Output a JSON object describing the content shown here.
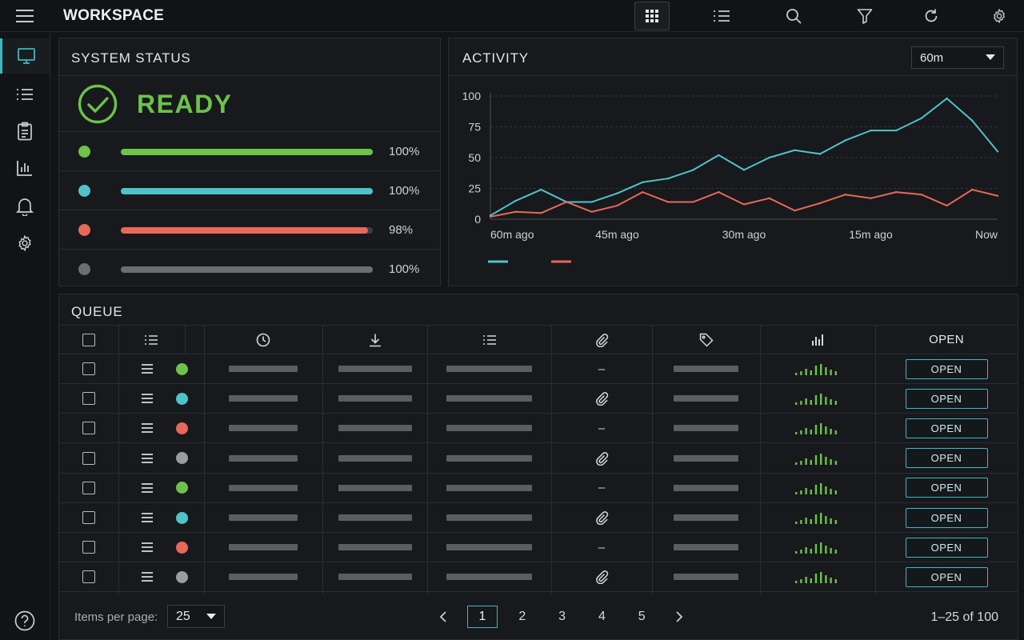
{
  "app": {
    "title": "WORKSPACE"
  },
  "toolbar": {
    "buttons": [
      {
        "name": "grid-view-button",
        "icon": "grid-icon",
        "active": true
      },
      {
        "name": "list-view-button",
        "icon": "list-icon",
        "active": false
      },
      {
        "name": "search-button",
        "icon": "search-icon",
        "active": false
      },
      {
        "name": "filter-button",
        "icon": "filter-icon",
        "active": false
      },
      {
        "name": "refresh-button",
        "icon": "refresh-icon",
        "active": false
      },
      {
        "name": "settings-button",
        "icon": "gear-icon",
        "active": false
      }
    ]
  },
  "sidebar": {
    "items": [
      {
        "icon": "monitor-icon",
        "active": true
      },
      {
        "icon": "list-icon",
        "active": false
      },
      {
        "icon": "clipboard-icon",
        "active": false
      },
      {
        "icon": "bar-chart-icon",
        "active": false
      },
      {
        "icon": "bell-icon",
        "active": false
      },
      {
        "icon": "gear-icon",
        "active": false
      }
    ],
    "help_icon": "help-icon"
  },
  "system_status": {
    "title": "SYSTEM STATUS",
    "state": "READY",
    "state_color": "#6cc24a",
    "metrics": [
      {
        "color": "#6cc24a",
        "value": 1.0,
        "label": "100%"
      },
      {
        "color": "#4fc3c9",
        "value": 1.0,
        "label": "100%"
      },
      {
        "color": "#e8685a",
        "value": 0.98,
        "label": "98%"
      },
      {
        "color": "#6b6e71",
        "value": 1.0,
        "label": "100%"
      }
    ]
  },
  "activity": {
    "title": "ACTIVITY",
    "range": "60m",
    "chart_data": {
      "type": "line",
      "title": "",
      "xlabel": "",
      "ylabel": "",
      "ylim": [
        0,
        100
      ],
      "yticks": [
        "100",
        "75",
        "50",
        "25",
        "0"
      ],
      "xticks": [
        "60m ago",
        "45m ago",
        "30m ago",
        "15m ago",
        "Now"
      ],
      "grid": true,
      "legend": "bottom-left",
      "x": [
        60,
        57,
        54,
        51,
        48,
        45,
        42,
        39,
        36,
        33,
        30,
        27,
        24,
        21,
        18,
        15,
        12,
        9,
        6,
        3,
        0
      ],
      "series": [
        {
          "color": "#4fc3c9",
          "values": [
            3,
            15,
            24,
            14,
            14,
            21,
            30,
            33,
            40,
            52,
            40,
            50,
            56,
            53,
            64,
            72,
            72,
            82,
            98,
            80,
            55
          ]
        },
        {
          "color": "#e8685a",
          "values": [
            2,
            6,
            5,
            14,
            6,
            11,
            22,
            14,
            14,
            22,
            12,
            17,
            7,
            13,
            20,
            17,
            22,
            20,
            11,
            24,
            19
          ]
        }
      ]
    }
  },
  "queue": {
    "title": "QUEUE",
    "header_icons": [
      "list-icon",
      "clock-icon",
      "download-icon",
      "list-lines-icon",
      "paperclip-icon",
      "tag-icon",
      "bar-chart-icon"
    ],
    "open_header": "OPEN",
    "rows": [
      {
        "dot": "#6cc24a",
        "attachment": "–",
        "action": "OPEN"
      },
      {
        "dot": "#4fc3c9",
        "attachment": "paperclip-icon",
        "action": "OPEN"
      },
      {
        "dot": "#e8685a",
        "attachment": "–",
        "action": "OPEN"
      },
      {
        "dot": "#9a9da0",
        "attachment": "paperclip-icon",
        "action": "OPEN"
      },
      {
        "dot": "#6cc24a",
        "attachment": "–",
        "action": "OPEN"
      },
      {
        "dot": "#4fc3c9",
        "attachment": "paperclip-icon",
        "action": "OPEN"
      },
      {
        "dot": "#e8685a",
        "attachment": "–",
        "action": "OPEN"
      },
      {
        "dot": "#9a9da0",
        "attachment": "paperclip-icon",
        "action": "OPEN"
      }
    ],
    "footer": {
      "items_per_page_label": "Items per page:",
      "items_per_page": "25",
      "pages": [
        "1",
        "2",
        "3",
        "4",
        "5"
      ],
      "current_page": "1",
      "range_text": "1–25 of 100"
    }
  }
}
